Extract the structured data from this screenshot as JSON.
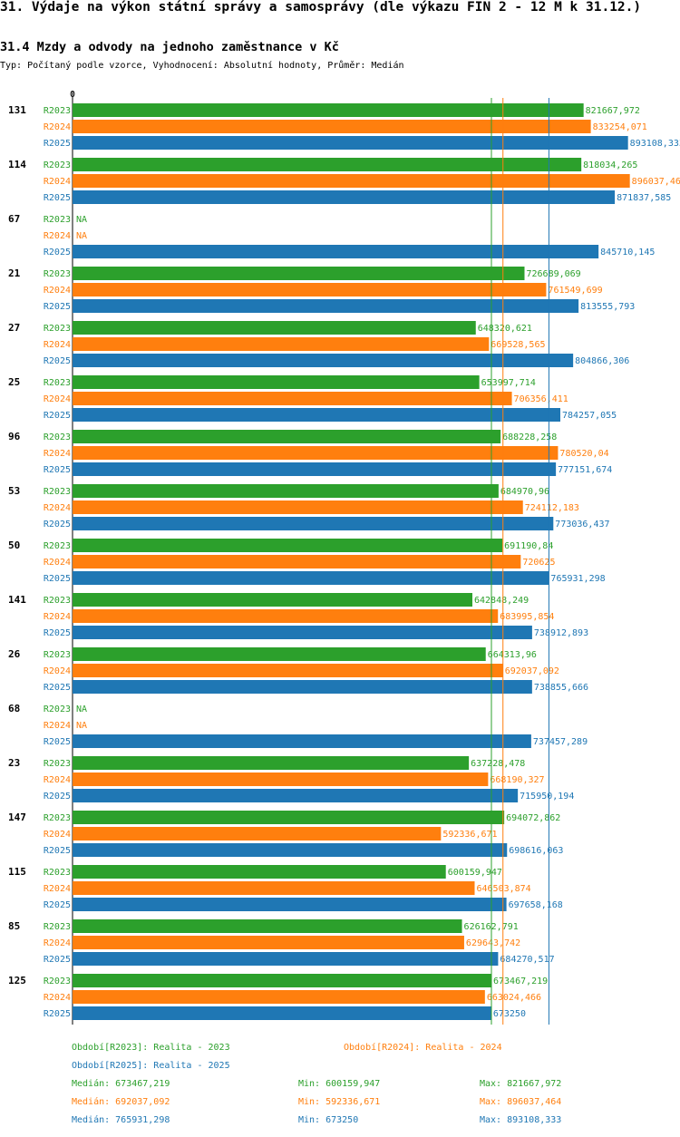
{
  "header": {
    "title": "31. Výdaje na výkon státní správy a samosprávy (dle výkazu FIN 2 - 12 M k 31.12.)",
    "subtitle": "31.4 Mzdy a odvody na jednoho zaměstnance v Kč",
    "type_line": "Typ: Počítaný podle vzorce, Vyhodnocení: Absolutní hodnoty, Průměr: Medián"
  },
  "colors": {
    "R2023": "#2ca02c",
    "R2024": "#ff7f0e",
    "R2025": "#1f77b4"
  },
  "chart_data": {
    "type": "bar",
    "orientation": "horizontal",
    "title": "31.4 Mzdy a odvody na jednoho zaměstnance v Kč",
    "x_tick_label": "0",
    "xlim": [
      0,
      920000
    ],
    "categories": [
      "131",
      "114",
      "67",
      "21",
      "27",
      "25",
      "96",
      "53",
      "50",
      "141",
      "26",
      "68",
      "23",
      "147",
      "115",
      "85",
      "125"
    ],
    "series": [
      {
        "name": "R2023",
        "values": [
          821667.972,
          818034.265,
          null,
          726689.069,
          648320.621,
          653997.714,
          688228.258,
          684970.96,
          691190.84,
          642848.249,
          664313.96,
          null,
          637228.478,
          694072.862,
          600159.947,
          626162.791,
          673467.219
        ],
        "labels": [
          "821667,972",
          "818034,265",
          "NA",
          "726689,069",
          "648320,621",
          "653997,714",
          "688228,258",
          "684970,96",
          "691190,84",
          "642848,249",
          "664313,96",
          "NA",
          "637228,478",
          "694072,862",
          "600159,947",
          "626162,791",
          "673467,219"
        ]
      },
      {
        "name": "R2024",
        "values": [
          833254.071,
          896037.464,
          null,
          761549.699,
          669528.565,
          706356.411,
          780520.04,
          724112.183,
          720625,
          683995.854,
          692037.092,
          null,
          668190.327,
          592336.671,
          646503.874,
          629643.742,
          663024.466
        ],
        "labels": [
          "833254,071",
          "896037,464",
          "NA",
          "761549,699",
          "669528,565",
          "706356,411",
          "780520,04",
          "724112,183",
          "720625",
          "683995,854",
          "692037,092",
          "NA",
          "668190,327",
          "592336,671",
          "646503,874",
          "629643,742",
          "663024,466"
        ]
      },
      {
        "name": "R2025",
        "values": [
          893108.333,
          871837.585,
          845710.145,
          813555.793,
          804866.306,
          784257.055,
          777151.674,
          773036.437,
          765931.298,
          738912.893,
          738855.666,
          737457.289,
          715950.194,
          698616.063,
          697658.168,
          684270.517,
          673250
        ],
        "labels": [
          "893108,333",
          "871837,585",
          "845710,145",
          "813555,793",
          "804866,306",
          "784257,055",
          "777151,674",
          "773036,437",
          "765931,298",
          "738912,893",
          "738855,666",
          "737457,289",
          "715950,194",
          "698616,063",
          "697658,168",
          "684270,517",
          "673250"
        ]
      }
    ],
    "medians": [
      673467.219,
      692037.092,
      765931.298
    ]
  },
  "legend": {
    "period_r2023": "Období[R2023]: Realita - 2023",
    "period_r2024": "Období[R2024]: Realita - 2024",
    "period_r2025": "Období[R2025]: Realita - 2025",
    "stats": [
      {
        "median": "Medián: 673467,219",
        "min": "Min: 600159,947",
        "max": "Max: 821667,972"
      },
      {
        "median": "Medián: 692037,092",
        "min": "Min: 592336,671",
        "max": "Max: 896037,464"
      },
      {
        "median": "Medián: 765931,298",
        "min": "Min: 673250",
        "max": "Max: 893108,333"
      }
    ]
  }
}
